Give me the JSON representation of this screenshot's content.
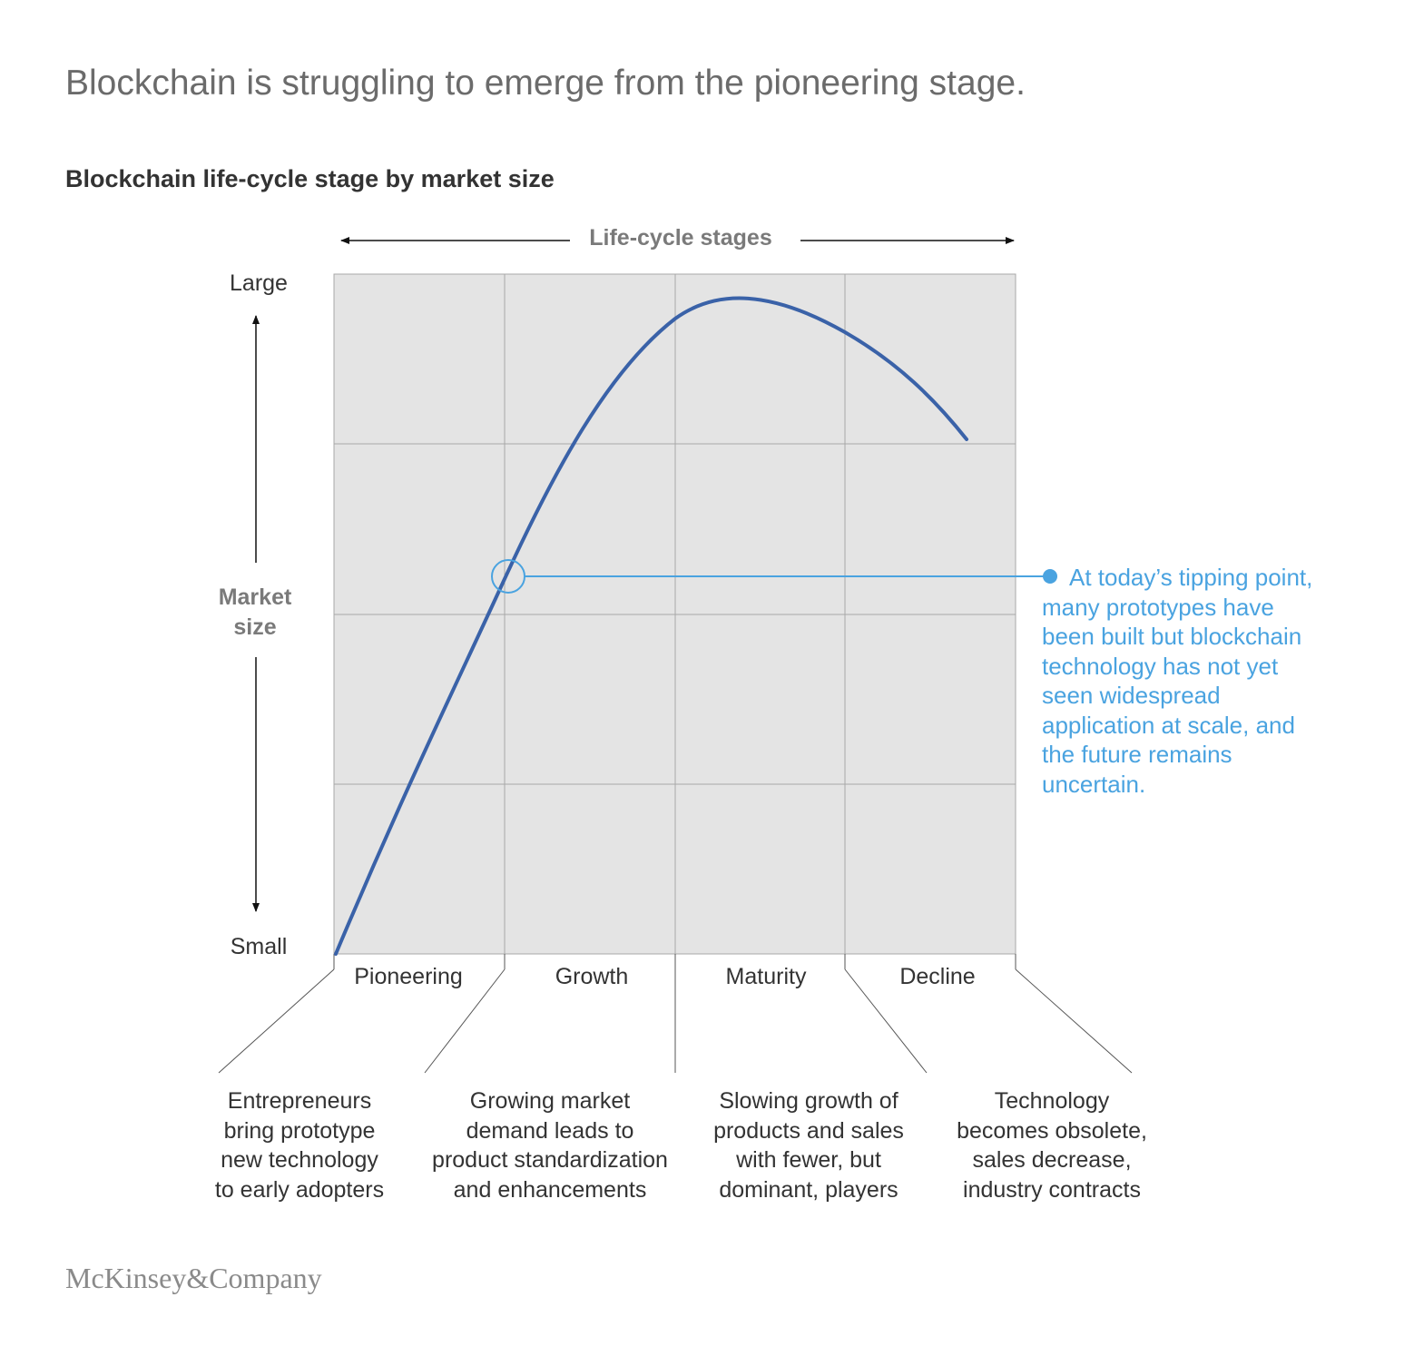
{
  "title": "Blockchain is struggling to emerge from the pioneering stage.",
  "subtitle": "Blockchain life-cycle stage by market size",
  "axes": {
    "x_label": "Life-cycle stages",
    "y_label_line1": "Market",
    "y_label_line2": "size",
    "y_top": "Large",
    "y_bottom": "Small"
  },
  "stages": [
    {
      "name": "Pioneering",
      "description": "Entrepreneurs\nbring prototype\nnew technology\nto early adopters"
    },
    {
      "name": "Growth",
      "description": "Growing market\ndemand leads to\nproduct standardization\nand enhancements"
    },
    {
      "name": "Maturity",
      "description": "Slowing growth of\nproducts and sales\nwith fewer, but\ndominant, players"
    },
    {
      "name": "Decline",
      "description": "Technology\nbecomes obsolete,\nsales decrease,\nindustry contracts"
    }
  ],
  "callout": {
    "text": "At today’s tipping point, many prototypes have been built but blockchain technology has not yet seen widespread application at scale, and the future remains uncertain."
  },
  "brand": "McKinsey&Company",
  "colors": {
    "curve": "#3a62a8",
    "callout": "#4aa3e0",
    "grid_fill": "#e4e4e4",
    "grid_line": "#a8a8a8",
    "axis_label": "#7a7a7a"
  }
}
